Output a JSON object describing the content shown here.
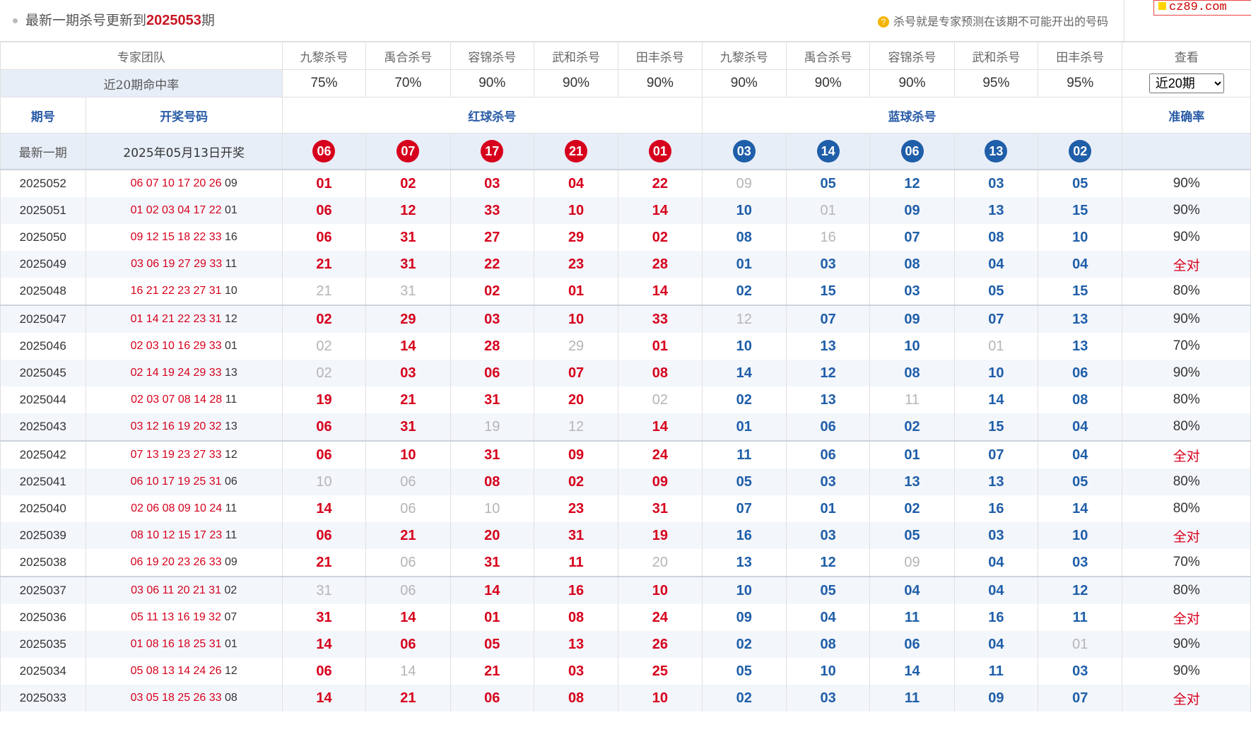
{
  "header": {
    "title_prefix": "最新一期杀号更新到",
    "title_issue": "2025053",
    "title_suffix": "期",
    "hint": "杀号就是专家预测在该期不可能开出的号码",
    "hint_icon": "help-icon",
    "watermark": "cz89.com"
  },
  "columns": {
    "team_label": "专家团队",
    "experts": [
      "九黎杀号",
      "禹合杀号",
      "容锦杀号",
      "武和杀号",
      "田丰杀号",
      "九黎杀号",
      "禹合杀号",
      "容锦杀号",
      "武和杀号",
      "田丰杀号"
    ],
    "view_label": "查看"
  },
  "hit_rate": {
    "label": "近20期命中率",
    "values": [
      "75%",
      "70%",
      "90%",
      "90%",
      "90%",
      "90%",
      "90%",
      "90%",
      "95%",
      "95%"
    ],
    "select_value": "近20期"
  },
  "subheader": {
    "issue": "期号",
    "draw": "开奖号码",
    "red_kill": "红球杀号",
    "blue_kill": "蓝球杀号",
    "accuracy": "准确率"
  },
  "latest": {
    "label": "最新一期",
    "date": "2025年05月13日开奖",
    "red": [
      "06",
      "07",
      "17",
      "21",
      "01"
    ],
    "blue": [
      "03",
      "14",
      "06",
      "13",
      "02"
    ]
  },
  "colors": {
    "red": "#d6001c",
    "blue": "#1f5ea8",
    "miss": "#b5b5b5"
  },
  "rows": [
    {
      "issue": "2025052",
      "reds": "06 07 10 17 20 26",
      "blue": "09",
      "kills": [
        "01",
        "02",
        "03",
        "04",
        "22",
        "09",
        "05",
        "12",
        "03",
        "05"
      ],
      "miss": [
        5
      ],
      "acc": "90%"
    },
    {
      "issue": "2025051",
      "reds": "01 02 03 04 17 22",
      "blue": "01",
      "kills": [
        "06",
        "12",
        "33",
        "10",
        "14",
        "10",
        "01",
        "09",
        "13",
        "15"
      ],
      "miss": [
        6
      ],
      "acc": "90%"
    },
    {
      "issue": "2025050",
      "reds": "09 12 15 18 22 33",
      "blue": "16",
      "kills": [
        "06",
        "31",
        "27",
        "29",
        "02",
        "08",
        "16",
        "07",
        "08",
        "10"
      ],
      "miss": [
        6
      ],
      "acc": "90%"
    },
    {
      "issue": "2025049",
      "reds": "03 06 19 27 29 33",
      "blue": "11",
      "kills": [
        "21",
        "31",
        "22",
        "23",
        "28",
        "01",
        "03",
        "08",
        "04",
        "04"
      ],
      "miss": [],
      "acc": "全对"
    },
    {
      "issue": "2025048",
      "reds": "16 21 22 23 27 31",
      "blue": "10",
      "kills": [
        "21",
        "31",
        "02",
        "01",
        "14",
        "02",
        "15",
        "03",
        "05",
        "15"
      ],
      "miss": [
        0,
        1
      ],
      "acc": "80%"
    },
    {
      "issue": "2025047",
      "reds": "01 14 21 22 23 31",
      "blue": "12",
      "kills": [
        "02",
        "29",
        "03",
        "10",
        "33",
        "12",
        "07",
        "09",
        "07",
        "13"
      ],
      "miss": [
        5
      ],
      "acc": "90%"
    },
    {
      "issue": "2025046",
      "reds": "02 03 10 16 29 33",
      "blue": "01",
      "kills": [
        "02",
        "14",
        "28",
        "29",
        "01",
        "10",
        "13",
        "10",
        "01",
        "13"
      ],
      "miss": [
        0,
        3,
        8
      ],
      "acc": "70%"
    },
    {
      "issue": "2025045",
      "reds": "02 14 19 24 29 33",
      "blue": "13",
      "kills": [
        "02",
        "03",
        "06",
        "07",
        "08",
        "14",
        "12",
        "08",
        "10",
        "06"
      ],
      "miss": [
        0
      ],
      "acc": "90%"
    },
    {
      "issue": "2025044",
      "reds": "02 03 07 08 14 28",
      "blue": "11",
      "kills": [
        "19",
        "21",
        "31",
        "20",
        "02",
        "02",
        "13",
        "11",
        "14",
        "08"
      ],
      "miss": [
        4,
        7
      ],
      "acc": "80%"
    },
    {
      "issue": "2025043",
      "reds": "03 12 16 19 20 32",
      "blue": "13",
      "kills": [
        "06",
        "31",
        "19",
        "12",
        "14",
        "01",
        "06",
        "02",
        "15",
        "04"
      ],
      "miss": [
        2,
        3
      ],
      "acc": "80%"
    },
    {
      "issue": "2025042",
      "reds": "07 13 19 23 27 33",
      "blue": "12",
      "kills": [
        "06",
        "10",
        "31",
        "09",
        "24",
        "11",
        "06",
        "01",
        "07",
        "04"
      ],
      "miss": [],
      "acc": "全对"
    },
    {
      "issue": "2025041",
      "reds": "06 10 17 19 25 31",
      "blue": "06",
      "kills": [
        "10",
        "06",
        "08",
        "02",
        "09",
        "05",
        "03",
        "13",
        "13",
        "05"
      ],
      "miss": [
        0,
        1
      ],
      "acc": "80%"
    },
    {
      "issue": "2025040",
      "reds": "02 06 08 09 10 24",
      "blue": "11",
      "kills": [
        "14",
        "06",
        "10",
        "23",
        "31",
        "07",
        "01",
        "02",
        "16",
        "14"
      ],
      "miss": [
        1,
        2
      ],
      "acc": "80%"
    },
    {
      "issue": "2025039",
      "reds": "08 10 12 15 17 23",
      "blue": "11",
      "kills": [
        "06",
        "21",
        "20",
        "31",
        "19",
        "16",
        "03",
        "05",
        "03",
        "10"
      ],
      "miss": [],
      "acc": "全对"
    },
    {
      "issue": "2025038",
      "reds": "06 19 20 23 26 33",
      "blue": "09",
      "kills": [
        "21",
        "06",
        "31",
        "11",
        "20",
        "13",
        "12",
        "09",
        "04",
        "03"
      ],
      "miss": [
        1,
        4,
        7
      ],
      "acc": "70%"
    },
    {
      "issue": "2025037",
      "reds": "03 06 11 20 21 31",
      "blue": "02",
      "kills": [
        "31",
        "06",
        "14",
        "16",
        "10",
        "10",
        "05",
        "04",
        "04",
        "12"
      ],
      "miss": [
        0,
        1
      ],
      "acc": "80%"
    },
    {
      "issue": "2025036",
      "reds": "05 11 13 16 19 32",
      "blue": "07",
      "kills": [
        "31",
        "14",
        "01",
        "08",
        "24",
        "09",
        "04",
        "11",
        "16",
        "11"
      ],
      "miss": [],
      "acc": "全对"
    },
    {
      "issue": "2025035",
      "reds": "01 08 16 18 25 31",
      "blue": "01",
      "kills": [
        "14",
        "06",
        "05",
        "13",
        "26",
        "02",
        "08",
        "06",
        "04",
        "01"
      ],
      "miss": [
        9
      ],
      "acc": "90%"
    },
    {
      "issue": "2025034",
      "reds": "05 08 13 14 24 26",
      "blue": "12",
      "kills": [
        "06",
        "14",
        "21",
        "03",
        "25",
        "05",
        "10",
        "14",
        "11",
        "03"
      ],
      "miss": [
        1
      ],
      "acc": "90%"
    },
    {
      "issue": "2025033",
      "reds": "03 05 18 25 26 33",
      "blue": "08",
      "kills": [
        "14",
        "21",
        "06",
        "08",
        "10",
        "02",
        "03",
        "11",
        "09",
        "07"
      ],
      "miss": [],
      "acc": "全对"
    }
  ]
}
